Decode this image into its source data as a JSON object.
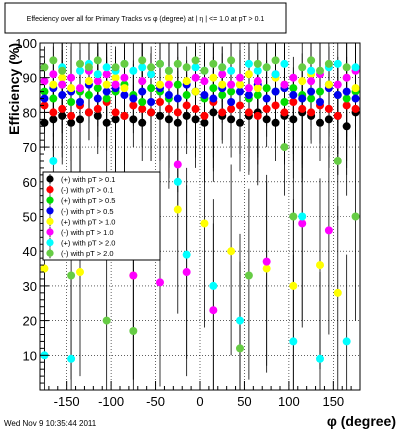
{
  "chart_data": {
    "type": "scatter",
    "title": "Effeciency over all for Primary Tracks vs φ (degree) at |  η | <= 1.0 at pT > 0.1",
    "xlabel": "φ (degree)",
    "ylabel": "Efficiency (%)",
    "xlim": [
      -180,
      180
    ],
    "ylim": [
      0,
      100
    ],
    "x_ticks": [
      -150,
      -100,
      -50,
      0,
      50,
      100,
      150
    ],
    "y_ticks": [
      10,
      20,
      30,
      40,
      50,
      60,
      70,
      80,
      90,
      100
    ],
    "grid": true,
    "legend_position": "middle-left",
    "series": [
      {
        "name": "(+) with pT > 0.1",
        "color": "#000000",
        "x": [
          -175,
          -165,
          -155,
          -145,
          -135,
          -125,
          -115,
          -105,
          -95,
          -85,
          -75,
          -65,
          -55,
          -45,
          -35,
          -25,
          -15,
          -5,
          5,
          15,
          25,
          35,
          45,
          55,
          65,
          75,
          85,
          95,
          105,
          115,
          125,
          135,
          145,
          155,
          165,
          175
        ],
        "y": [
          77,
          78,
          79,
          77,
          78,
          80,
          79,
          77,
          78,
          79,
          78,
          77,
          80,
          79,
          78,
          77,
          79,
          78,
          77,
          80,
          79,
          78,
          77,
          79,
          80,
          78,
          77,
          79,
          78,
          80,
          79,
          77,
          78,
          79,
          76,
          80
        ]
      },
      {
        "name": "(-) with pT > 0.1",
        "color": "#ff0000",
        "x": [
          -175,
          -165,
          -155,
          -145,
          -135,
          -125,
          -115,
          -105,
          -95,
          -85,
          -75,
          -65,
          -55,
          -45,
          -35,
          -25,
          -15,
          -5,
          5,
          15,
          25,
          35,
          45,
          55,
          65,
          75,
          85,
          95,
          105,
          115,
          125,
          135,
          145,
          155,
          165,
          175
        ],
        "y": [
          82,
          80,
          81,
          79,
          82,
          80,
          81,
          83,
          80,
          79,
          82,
          81,
          80,
          83,
          81,
          80,
          82,
          81,
          79,
          83,
          80,
          81,
          82,
          80,
          79,
          81,
          82,
          80,
          83,
          81,
          80,
          82,
          81,
          79,
          82,
          81
        ]
      },
      {
        "name": "(+) with pT > 0.5",
        "color": "#00dd00",
        "x": [
          -175,
          -165,
          -155,
          -145,
          -135,
          -125,
          -115,
          -105,
          -95,
          -85,
          -75,
          -65,
          -55,
          -45,
          -35,
          -25,
          -15,
          -5,
          5,
          15,
          25,
          35,
          45,
          55,
          65,
          75,
          85,
          95,
          105,
          115,
          125,
          135,
          145,
          155,
          165,
          175
        ],
        "y": [
          86,
          84,
          88,
          83,
          86,
          85,
          87,
          84,
          86,
          88,
          85,
          83,
          87,
          86,
          84,
          88,
          85,
          86,
          84,
          87,
          85,
          86,
          88,
          84,
          85,
          87,
          86,
          83,
          87,
          85,
          84,
          86,
          88,
          85,
          84,
          86
        ]
      },
      {
        "name": "(-) with pT > 0.5",
        "color": "#0000ee",
        "x": [
          -175,
          -165,
          -155,
          -145,
          -135,
          -125,
          -115,
          -105,
          -95,
          -85,
          -75,
          -65,
          -55,
          -45,
          -35,
          -25,
          -15,
          -5,
          5,
          15,
          25,
          35,
          45,
          55,
          65,
          75,
          85,
          95,
          105,
          115,
          125,
          135,
          145,
          155,
          165,
          175
        ],
        "y": [
          84,
          87,
          85,
          86,
          83,
          88,
          84,
          86,
          87,
          85,
          84,
          86,
          83,
          87,
          85,
          84,
          88,
          86,
          85,
          84,
          87,
          83,
          86,
          85,
          88,
          84,
          86,
          87,
          85,
          84,
          86,
          83,
          87,
          85,
          86,
          84
        ]
      },
      {
        "name": "(+) with pT > 1.0",
        "color": "#ffff00",
        "x": [
          -175,
          -165,
          -155,
          -145,
          -135,
          -125,
          -115,
          -105,
          -95,
          -85,
          -75,
          -65,
          -55,
          -45,
          -35,
          -25,
          -15,
          -5,
          5,
          15,
          25,
          35,
          45,
          55,
          65,
          75,
          85,
          95,
          105,
          115,
          125,
          135,
          145,
          155,
          165,
          175
        ],
        "y": [
          35,
          88,
          90,
          87,
          34,
          89,
          91,
          88,
          90,
          87,
          33,
          89,
          91,
          88,
          90,
          52,
          89,
          86,
          48,
          90,
          88,
          40,
          88,
          91,
          87,
          35,
          90,
          88,
          30,
          89,
          91,
          36,
          88,
          28,
          90,
          87
        ]
      },
      {
        "name": "(-) with pT > 1.0",
        "color": "#ff00ff",
        "x": [
          -175,
          -165,
          -155,
          -145,
          -135,
          -125,
          -115,
          -105,
          -95,
          -85,
          -75,
          -65,
          -55,
          -45,
          -35,
          -25,
          -15,
          -5,
          5,
          15,
          25,
          35,
          45,
          55,
          65,
          75,
          85,
          95,
          105,
          115,
          125,
          135,
          145,
          155,
          165,
          175
        ],
        "y": [
          89,
          91,
          88,
          90,
          87,
          92,
          89,
          91,
          88,
          90,
          33,
          89,
          91,
          31,
          88,
          65,
          34,
          90,
          89,
          23,
          91,
          88,
          90,
          87,
          89,
          37,
          91,
          88,
          90,
          48,
          89,
          91,
          46,
          88,
          90,
          92
        ]
      },
      {
        "name": "(+) with pT > 2.0",
        "color": "#00ffff",
        "x": [
          -175,
          -165,
          -155,
          -145,
          -135,
          -125,
          -115,
          -105,
          -95,
          -85,
          -75,
          -65,
          -55,
          -45,
          -35,
          -25,
          -15,
          -5,
          5,
          15,
          25,
          35,
          45,
          55,
          65,
          75,
          85,
          95,
          105,
          115,
          125,
          135,
          145,
          155,
          165,
          175
        ],
        "y": [
          10,
          66,
          93,
          9,
          92,
          94,
          91,
          93,
          92,
          94,
          92,
          93,
          91,
          94,
          92,
          60,
          39,
          93,
          92,
          30,
          93,
          92,
          20,
          94,
          92,
          93,
          91,
          94,
          14,
          50,
          92,
          9,
          93,
          94,
          14,
          93
        ]
      },
      {
        "name": "(-) with pT > 2.0",
        "color": "#66cc44",
        "x": [
          -175,
          -165,
          -155,
          -145,
          -135,
          -125,
          -115,
          -105,
          -95,
          -85,
          -75,
          -65,
          -55,
          -45,
          -35,
          -25,
          -15,
          -5,
          5,
          15,
          25,
          35,
          45,
          55,
          65,
          75,
          85,
          95,
          105,
          115,
          125,
          135,
          145,
          155,
          165,
          175
        ],
        "y": [
          93,
          95,
          92,
          33,
          94,
          93,
          95,
          20,
          93,
          94,
          17,
          95,
          93,
          94,
          92,
          94,
          93,
          95,
          92,
          94,
          93,
          95,
          12,
          33,
          94,
          93,
          95,
          70,
          50,
          93,
          95,
          92,
          94,
          66,
          93,
          50
        ]
      }
    ]
  },
  "footer": {
    "timestamp": "Wed Nov  9 10:35:44 2011"
  }
}
